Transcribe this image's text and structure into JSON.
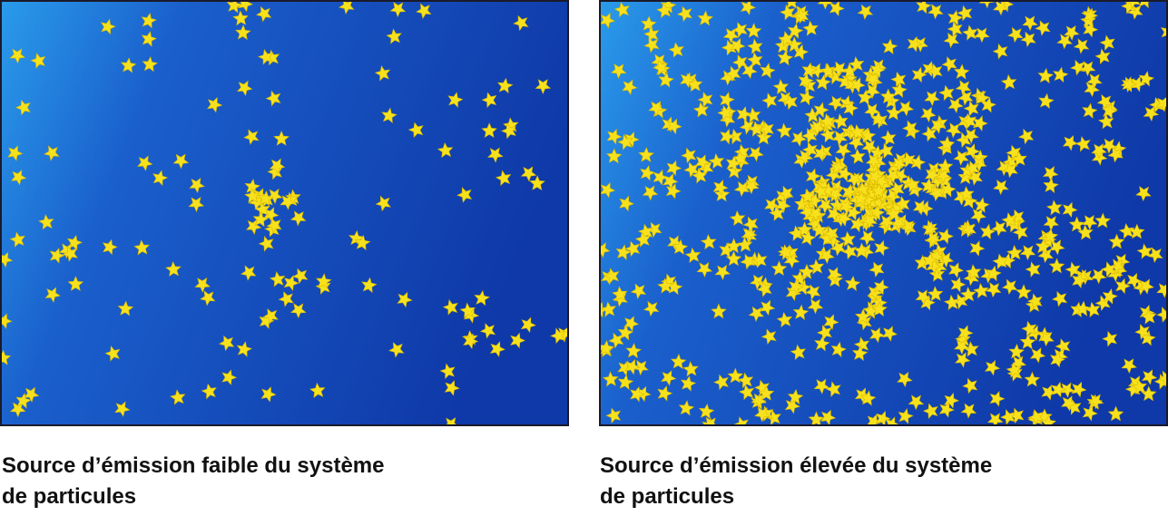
{
  "panels": [
    {
      "caption": [
        "Source d’émission faible du système",
        "de particules"
      ]
    },
    {
      "caption": [
        "Source d’émission élevée du système",
        "de particules"
      ]
    }
  ]
}
